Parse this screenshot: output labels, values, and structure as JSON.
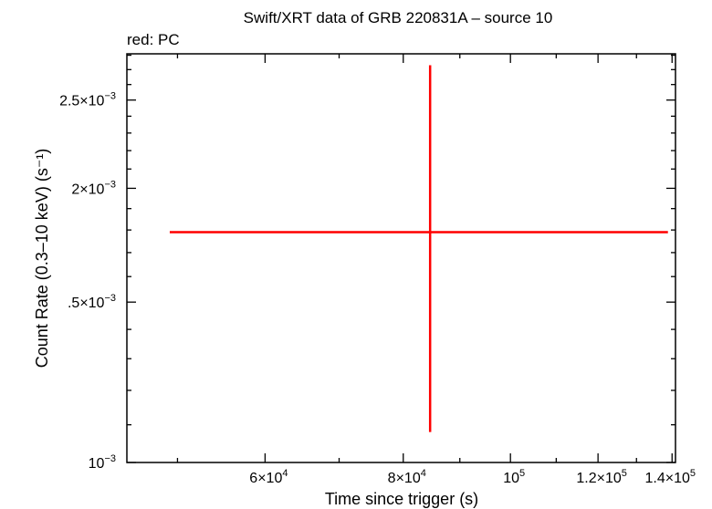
{
  "chart_data": {
    "type": "scatter",
    "title": "Swift/XRT data of GRB 220831A – source 10",
    "subtitle": "red: PC",
    "xlabel": "Time since trigger (s)",
    "ylabel": "Count Rate (0.3–10 keV) (s⁻¹)",
    "xlim": [
      45000,
      141000
    ],
    "ylim": [
      0.001,
      0.00281
    ],
    "x_ticks": [
      {
        "value": 60000,
        "mant": "6×10",
        "exp": "4"
      },
      {
        "value": 80000,
        "mant": "8×10",
        "exp": "4"
      },
      {
        "value": 100000,
        "mant": "10",
        "exp": "5"
      },
      {
        "value": 120000,
        "mant": "1.2×10",
        "exp": "5"
      },
      {
        "value": 140000,
        "mant": "1.4×10",
        "exp": "5"
      }
    ],
    "y_ticks": [
      {
        "value": 0.001,
        "mant": "10",
        "exp": "−3"
      },
      {
        "value": 0.0015,
        "mant": ".5×10",
        "exp": "−3"
      },
      {
        "value": 0.002,
        "mant": "2×10",
        "exp": "−3"
      },
      {
        "value": 0.0025,
        "mant": "2.5×10",
        "exp": "−3"
      }
    ],
    "series": [
      {
        "color": "#ff0000",
        "points": [
          {
            "x": 84600,
            "x_lo": 49200,
            "x_hi": 138800,
            "y": 0.00179,
            "y_lo": 0.00108,
            "y_hi": 0.00273
          }
        ]
      }
    ],
    "grid": false,
    "legend": "none"
  }
}
